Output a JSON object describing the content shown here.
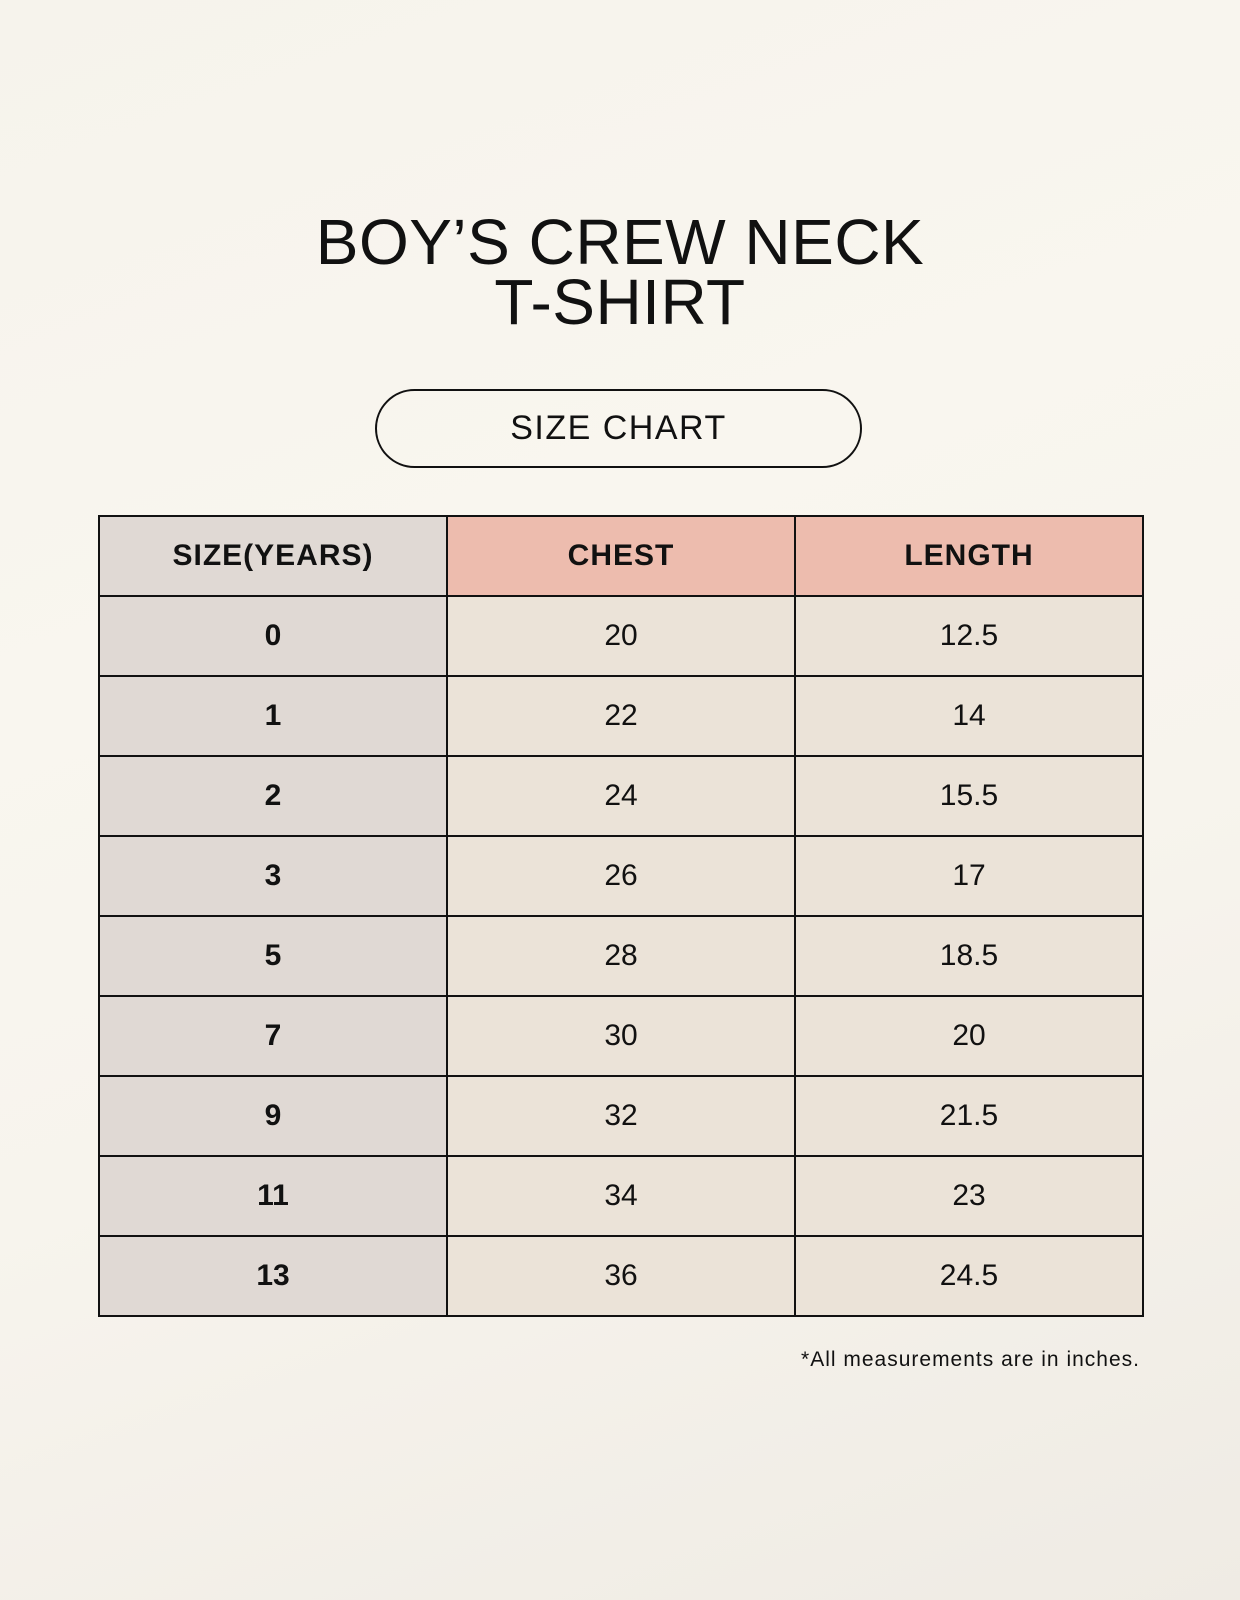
{
  "title_lines": [
    "BOY’S CREW NECK",
    "T-SHIRT"
  ],
  "subtitle": "SIZE CHART",
  "table": {
    "headers": [
      "SIZE(YEARS)",
      "CHEST",
      "LENGTH"
    ],
    "rows": [
      [
        "0",
        "20",
        "12.5"
      ],
      [
        "1",
        "22",
        "14"
      ],
      [
        "2",
        "24",
        "15.5"
      ],
      [
        "3",
        "26",
        "17"
      ],
      [
        "5",
        "28",
        "18.5"
      ],
      [
        "7",
        "30",
        "20"
      ],
      [
        "9",
        "32",
        "21.5"
      ],
      [
        "11",
        "34",
        "23"
      ],
      [
        "13",
        "36",
        "24.5"
      ]
    ]
  },
  "footnote": "*All measurements are in inches.",
  "colors": {
    "size_column": "#e0d9d4",
    "header_accent": "#edbcae",
    "cell": "#ebe3d8"
  }
}
